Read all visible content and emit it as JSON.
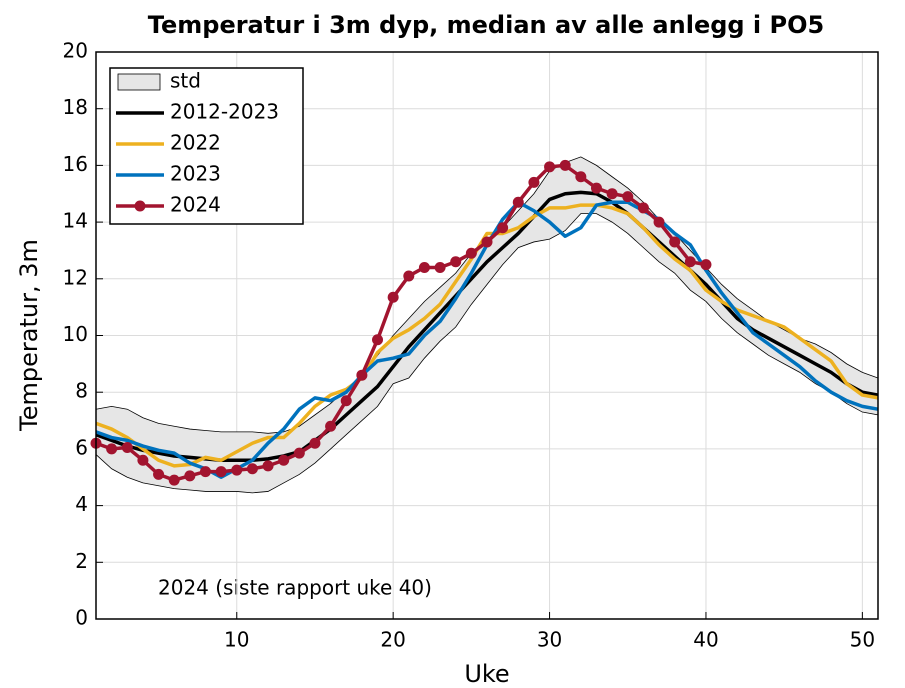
{
  "chart_data": {
    "type": "line",
    "title": "Temperatur i 3m dyp, median av alle anlegg i PO5",
    "xlabel": "Uke",
    "ylabel": "Temperatur, 3m",
    "annotation": "2024 (siste rapport uke 40)",
    "x": [
      1,
      2,
      3,
      4,
      5,
      6,
      7,
      8,
      9,
      10,
      11,
      12,
      13,
      14,
      15,
      16,
      17,
      18,
      19,
      20,
      21,
      22,
      23,
      24,
      25,
      26,
      27,
      28,
      29,
      30,
      31,
      32,
      33,
      34,
      35,
      36,
      37,
      38,
      39,
      40,
      41,
      42,
      43,
      44,
      45,
      46,
      47,
      48,
      49,
      50,
      51
    ],
    "xlim": [
      1,
      51
    ],
    "xticks": [
      10,
      20,
      30,
      40,
      50
    ],
    "ylim": [
      0,
      20
    ],
    "yticks": [
      0,
      2,
      4,
      6,
      8,
      10,
      12,
      14,
      16,
      18,
      20
    ],
    "grid": true,
    "legend": "upper left",
    "series": [
      {
        "name": "std",
        "kind": "band",
        "color": "#e6e6e6",
        "upper": [
          7.4,
          7.5,
          7.4,
          7.1,
          6.9,
          6.8,
          6.7,
          6.65,
          6.6,
          6.6,
          6.6,
          6.55,
          6.6,
          6.8,
          7.2,
          7.6,
          8.1,
          8.6,
          9.3,
          10.0,
          10.6,
          11.2,
          11.7,
          12.2,
          12.9,
          13.4,
          13.8,
          14.4,
          15.0,
          15.8,
          16.1,
          16.3,
          16.0,
          15.6,
          15.2,
          14.7,
          14.1,
          13.6,
          13.0,
          12.4,
          11.8,
          11.3,
          10.9,
          10.5,
          10.2,
          9.9,
          9.7,
          9.4,
          9.0,
          8.7,
          8.5
        ],
        "lower": [
          5.8,
          5.3,
          5.0,
          4.8,
          4.7,
          4.6,
          4.55,
          4.5,
          4.5,
          4.5,
          4.45,
          4.5,
          4.8,
          5.1,
          5.5,
          6.0,
          6.5,
          7.0,
          7.5,
          8.3,
          8.5,
          9.2,
          9.8,
          10.3,
          11.1,
          11.8,
          12.5,
          13.1,
          13.3,
          13.4,
          13.7,
          14.3,
          14.3,
          14.0,
          13.6,
          13.1,
          12.6,
          12.2,
          11.6,
          11.2,
          10.6,
          10.1,
          9.7,
          9.3,
          9.0,
          8.7,
          8.3,
          8.0,
          7.6,
          7.3,
          7.2
        ]
      },
      {
        "name": "2012-2023",
        "color": "#000000",
        "values": [
          6.5,
          6.3,
          6.1,
          5.95,
          5.85,
          5.75,
          5.7,
          5.65,
          5.6,
          5.6,
          5.6,
          5.65,
          5.75,
          5.9,
          6.3,
          6.7,
          7.2,
          7.7,
          8.2,
          8.9,
          9.6,
          10.2,
          10.8,
          11.4,
          12.0,
          12.6,
          13.1,
          13.6,
          14.2,
          14.8,
          15.0,
          15.05,
          15.0,
          14.7,
          14.3,
          13.8,
          13.3,
          12.8,
          12.3,
          11.8,
          11.2,
          10.6,
          10.2,
          9.9,
          9.6,
          9.3,
          9.0,
          8.7,
          8.3,
          8.0,
          7.9
        ]
      },
      {
        "name": "2022",
        "color": "#edb120",
        "values": [
          6.9,
          6.7,
          6.4,
          6.0,
          5.6,
          5.4,
          5.45,
          5.7,
          5.6,
          5.9,
          6.2,
          6.4,
          6.4,
          6.9,
          7.5,
          7.9,
          8.1,
          8.5,
          9.4,
          9.9,
          10.2,
          10.6,
          11.1,
          11.9,
          12.7,
          13.6,
          13.6,
          13.8,
          14.2,
          14.5,
          14.5,
          14.6,
          14.6,
          14.5,
          14.3,
          13.8,
          13.2,
          12.7,
          12.3,
          11.6,
          11.2,
          10.9,
          10.7,
          10.5,
          10.3,
          9.9,
          9.5,
          9.1,
          8.3,
          7.9,
          7.8
        ]
      },
      {
        "name": "2023",
        "color": "#0072bd",
        "values": [
          6.6,
          6.4,
          6.3,
          6.1,
          5.95,
          5.85,
          5.5,
          5.3,
          5.0,
          5.3,
          5.6,
          6.2,
          6.7,
          7.4,
          7.8,
          7.7,
          8.0,
          8.6,
          9.1,
          9.2,
          9.35,
          10.0,
          10.5,
          11.3,
          12.2,
          13.2,
          14.1,
          14.7,
          14.4,
          14.0,
          13.5,
          13.8,
          14.6,
          14.7,
          14.7,
          14.4,
          14.1,
          13.6,
          13.2,
          12.3,
          11.5,
          10.8,
          10.1,
          9.7,
          9.3,
          8.9,
          8.4,
          8.0,
          7.7,
          7.5,
          7.4
        ]
      },
      {
        "name": "2024",
        "color": "#a2142f",
        "markers": true,
        "values": [
          6.2,
          6.0,
          6.05,
          5.6,
          5.1,
          4.9,
          5.05,
          5.2,
          5.2,
          5.25,
          5.3,
          5.4,
          5.6,
          5.85,
          6.2,
          6.8,
          7.7,
          8.6,
          9.85,
          11.35,
          12.1,
          12.4,
          12.4,
          12.6,
          12.9,
          13.3,
          13.8,
          14.7,
          15.4,
          15.95,
          16.0,
          15.6,
          15.2,
          15.0,
          14.9,
          14.5,
          14.0,
          13.3,
          12.6,
          12.5,
          null,
          null,
          null,
          null,
          null,
          null,
          null,
          null,
          null,
          null,
          null
        ]
      }
    ]
  }
}
